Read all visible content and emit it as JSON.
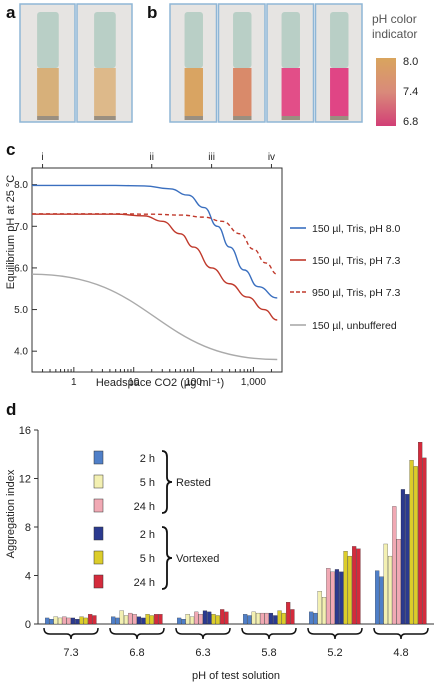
{
  "panel_labels": {
    "a": "a",
    "b": "b",
    "c": "c",
    "d": "d"
  },
  "panel_b": {
    "indicator_title_line1": "pH color",
    "indicator_title_line2": "indicator",
    "scale_labels": [
      "8.0",
      "7.4",
      "6.8"
    ],
    "scale_colors": [
      "#d9a55e",
      "#d98a7a",
      "#d23f76"
    ],
    "tube_liquid_colors": [
      "#d9a462",
      "#d98a6a",
      "#e24e88",
      "#e04585"
    ]
  },
  "panel_a": {
    "tube_liquid_colors": [
      "#d7b07a",
      "#ddb98a"
    ]
  },
  "chart_data": [
    {
      "type": "line",
      "panel": "c",
      "xlabel": "Headspace CO2 (µg ml⁻¹)",
      "ylabel": "Equilibrium pH at 25 °C",
      "xscale": "log",
      "xlim": [
        0.2,
        3000
      ],
      "ylim": [
        3.5,
        8.4
      ],
      "xticks": [
        "1",
        "10",
        "100",
        "1,000"
      ],
      "xtick_values": [
        1,
        10,
        100,
        1000
      ],
      "minor_xticks": [
        0.2,
        0.3,
        0.4,
        0.5,
        0.6,
        0.7,
        0.8,
        0.9,
        2,
        3,
        4,
        5,
        6,
        7,
        8,
        9,
        20,
        30,
        40,
        50,
        60,
        70,
        80,
        90,
        200,
        300,
        400,
        500,
        600,
        700,
        800,
        900,
        2000,
        3000
      ],
      "yticks": [
        "4.0",
        "5.0",
        "6.0",
        "7.0",
        "8.0"
      ],
      "ytick_values": [
        4,
        5,
        6,
        7,
        8
      ],
      "top_markers": [
        {
          "label": "i",
          "x": 0.3
        },
        {
          "label": "ii",
          "x": 20
        },
        {
          "label": "iii",
          "x": 200
        },
        {
          "label": "iv",
          "x": 2000
        }
      ],
      "series": [
        {
          "name": "150 µl, Tris, pH 8.0",
          "color": "#3a6fbf",
          "dash": false,
          "x": [
            0.2,
            1,
            5,
            15,
            40,
            80,
            150,
            250,
            400,
            700,
            1200,
            2500
          ],
          "y": [
            7.98,
            7.98,
            7.98,
            7.97,
            7.9,
            7.75,
            7.45,
            7.0,
            6.5,
            5.95,
            5.55,
            5.28
          ]
        },
        {
          "name": "150 µl, Tris, pH 7.3",
          "color": "#c0392b",
          "dash": false,
          "x": [
            0.2,
            1,
            5,
            15,
            30,
            60,
            100,
            200,
            400,
            800,
            1500,
            2500
          ],
          "y": [
            7.29,
            7.29,
            7.29,
            7.25,
            7.12,
            6.82,
            6.5,
            6.0,
            5.62,
            5.3,
            5.0,
            4.75
          ]
        },
        {
          "name": "950 µl, Tris, pH 7.3",
          "color": "#c0392b",
          "dash": true,
          "x": [
            0.2,
            1,
            5,
            20,
            60,
            150,
            300,
            600,
            1000,
            1600,
            2500
          ],
          "y": [
            7.3,
            7.3,
            7.3,
            7.29,
            7.27,
            7.22,
            7.12,
            6.82,
            6.45,
            6.12,
            5.85
          ]
        },
        {
          "name": "150 µl, unbuffered",
          "color": "#aaaaaa",
          "dash": false,
          "x": [
            0.2,
            2500
          ],
          "y": [
            5.85,
            3.8
          ]
        }
      ]
    },
    {
      "type": "bar",
      "panel": "d",
      "xlabel": "pH of test solution",
      "ylabel": "Aggregation index",
      "ylim": [
        0,
        16
      ],
      "yticks": [
        "0",
        "4",
        "8",
        "12",
        "16"
      ],
      "ytick_values": [
        0,
        4,
        8,
        12,
        16
      ],
      "categories": [
        "7.3",
        "6.8",
        "6.3",
        "5.8",
        "5.2",
        "4.8"
      ],
      "legend_groups": [
        {
          "label": "Rested",
          "series_indices": [
            0,
            1,
            2
          ]
        },
        {
          "label": "Vortexed",
          "series_indices": [
            3,
            4,
            5
          ]
        }
      ],
      "series": [
        {
          "name": "2 h",
          "group": "Rested",
          "color": "#4f7fc8",
          "values": [
            0.5,
            0.6,
            0.5,
            0.8,
            1.0,
            4.4
          ]
        },
        {
          "name": "5 h",
          "group": "Rested",
          "color": "#f3f0b2",
          "values": [
            0.6,
            1.1,
            0.8,
            1.0,
            2.7,
            6.6
          ]
        },
        {
          "name": "24 h",
          "group": "Rested",
          "color": "#f1a9b4",
          "values": [
            0.6,
            0.9,
            1.0,
            0.9,
            4.6,
            9.7
          ]
        },
        {
          "name": "2 h",
          "group": "Vortexed",
          "color": "#2b3a8f",
          "values": [
            0.5,
            0.6,
            1.1,
            0.9,
            4.5,
            11.1
          ]
        },
        {
          "name": "5 h",
          "group": "Vortexed",
          "color": "#dccd2a",
          "values": [
            0.6,
            0.8,
            0.8,
            1.1,
            6.0,
            13.5
          ]
        },
        {
          "name": "24 h",
          "group": "Vortexed",
          "color": "#d42b3c",
          "values": [
            0.8,
            0.8,
            1.2,
            1.8,
            6.4,
            15.0
          ]
        }
      ],
      "series_secondary_values": [
        [
          0.4,
          0.5,
          0.4,
          0.7,
          0.9,
          3.9
        ],
        [
          0.5,
          0.7,
          0.6,
          0.9,
          2.2,
          5.6
        ],
        [
          0.5,
          0.8,
          0.8,
          0.9,
          4.3,
          7.0
        ],
        [
          0.4,
          0.5,
          1.0,
          0.7,
          4.3,
          10.7
        ],
        [
          0.5,
          0.7,
          0.7,
          0.9,
          5.6,
          13.0
        ],
        [
          0.7,
          0.8,
          1.0,
          1.2,
          6.2,
          13.7
        ]
      ]
    }
  ]
}
